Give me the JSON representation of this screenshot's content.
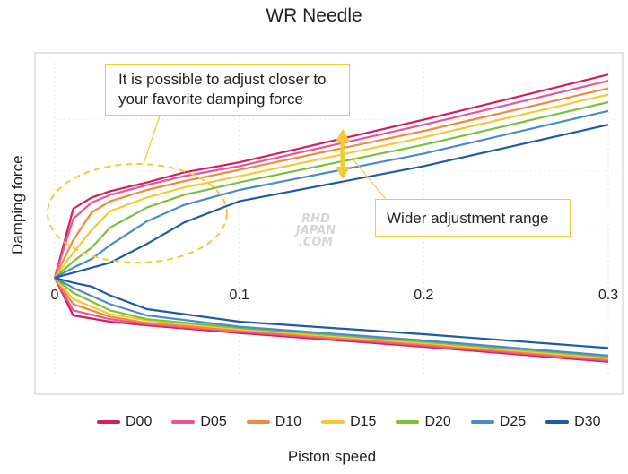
{
  "chart_data": {
    "type": "line",
    "title": "WR Needle",
    "xlabel": "Piston speed",
    "ylabel": "Damping force",
    "x_ticks": [
      "0",
      "0.1",
      "0.2",
      "0.3"
    ],
    "xlim": [
      0,
      0.3
    ],
    "y_ticks_labeled": false,
    "grid": true,
    "legend_position": "bottom",
    "annotations": [
      "It is possible to adjust closer to your favorite damping force",
      "Wider adjustment range"
    ],
    "watermark": [
      "RHD",
      "JAPAN",
      ".COM"
    ],
    "series": [
      {
        "name": "D00",
        "color": "#d81b60",
        "compression": [
          [
            0,
            0
          ],
          [
            0.01,
            0.55
          ],
          [
            0.02,
            0.64
          ],
          [
            0.03,
            0.69
          ],
          [
            0.05,
            0.76
          ],
          [
            0.07,
            0.84
          ],
          [
            0.1,
            0.92
          ],
          [
            0.2,
            1.26
          ],
          [
            0.3,
            1.62
          ]
        ],
        "rebound": [
          [
            0,
            0
          ],
          [
            0.01,
            -0.3
          ],
          [
            0.03,
            -0.35
          ],
          [
            0.05,
            -0.38
          ],
          [
            0.1,
            -0.44
          ],
          [
            0.2,
            -0.55
          ],
          [
            0.3,
            -0.67
          ]
        ]
      },
      {
        "name": "D05",
        "color": "#e8559b",
        "compression": [
          [
            0,
            0
          ],
          [
            0.01,
            0.47
          ],
          [
            0.02,
            0.6
          ],
          [
            0.03,
            0.66
          ],
          [
            0.05,
            0.74
          ],
          [
            0.07,
            0.81
          ],
          [
            0.1,
            0.89
          ],
          [
            0.2,
            1.22
          ],
          [
            0.3,
            1.57
          ]
        ],
        "rebound": [
          [
            0,
            0
          ],
          [
            0.01,
            -0.26
          ],
          [
            0.03,
            -0.33
          ],
          [
            0.05,
            -0.37
          ],
          [
            0.1,
            -0.43
          ],
          [
            0.2,
            -0.54
          ],
          [
            0.3,
            -0.66
          ]
        ]
      },
      {
        "name": "D10",
        "color": "#ed8b3a",
        "compression": [
          [
            0,
            0
          ],
          [
            0.01,
            0.3
          ],
          [
            0.02,
            0.52
          ],
          [
            0.03,
            0.61
          ],
          [
            0.05,
            0.7
          ],
          [
            0.07,
            0.77
          ],
          [
            0.1,
            0.86
          ],
          [
            0.2,
            1.17
          ],
          [
            0.3,
            1.51
          ]
        ],
        "rebound": [
          [
            0,
            0
          ],
          [
            0.01,
            -0.21
          ],
          [
            0.03,
            -0.31
          ],
          [
            0.05,
            -0.36
          ],
          [
            0.1,
            -0.42
          ],
          [
            0.2,
            -0.53
          ],
          [
            0.3,
            -0.65
          ]
        ]
      },
      {
        "name": "D15",
        "color": "#f5c934",
        "compression": [
          [
            0,
            0
          ],
          [
            0.01,
            0.2
          ],
          [
            0.02,
            0.38
          ],
          [
            0.03,
            0.53
          ],
          [
            0.05,
            0.64
          ],
          [
            0.07,
            0.72
          ],
          [
            0.1,
            0.81
          ],
          [
            0.2,
            1.12
          ],
          [
            0.3,
            1.46
          ]
        ],
        "rebound": [
          [
            0,
            0
          ],
          [
            0.01,
            -0.17
          ],
          [
            0.03,
            -0.29
          ],
          [
            0.05,
            -0.34
          ],
          [
            0.1,
            -0.41
          ],
          [
            0.2,
            -0.52
          ],
          [
            0.3,
            -0.64
          ]
        ]
      },
      {
        "name": "D20",
        "color": "#7cbf3a",
        "compression": [
          [
            0,
            0
          ],
          [
            0.01,
            0.13
          ],
          [
            0.02,
            0.24
          ],
          [
            0.03,
            0.4
          ],
          [
            0.05,
            0.56
          ],
          [
            0.07,
            0.66
          ],
          [
            0.1,
            0.76
          ],
          [
            0.2,
            1.06
          ],
          [
            0.3,
            1.4
          ]
        ],
        "rebound": [
          [
            0,
            0
          ],
          [
            0.01,
            -0.12
          ],
          [
            0.03,
            -0.26
          ],
          [
            0.05,
            -0.33
          ],
          [
            0.1,
            -0.4
          ],
          [
            0.2,
            -0.51
          ],
          [
            0.3,
            -0.63
          ]
        ]
      },
      {
        "name": "D25",
        "color": "#4a8ccb",
        "compression": [
          [
            0,
            0
          ],
          [
            0.01,
            0.08
          ],
          [
            0.02,
            0.15
          ],
          [
            0.03,
            0.26
          ],
          [
            0.05,
            0.45
          ],
          [
            0.07,
            0.58
          ],
          [
            0.1,
            0.7
          ],
          [
            0.2,
            0.99
          ],
          [
            0.3,
            1.33
          ]
        ],
        "rebound": [
          [
            0,
            0
          ],
          [
            0.01,
            -0.08
          ],
          [
            0.03,
            -0.21
          ],
          [
            0.05,
            -0.3
          ],
          [
            0.1,
            -0.39
          ],
          [
            0.2,
            -0.5
          ],
          [
            0.3,
            -0.62
          ]
        ]
      },
      {
        "name": "D30",
        "color": "#1f5aa6",
        "compression": [
          [
            0,
            0
          ],
          [
            0.01,
            0.04
          ],
          [
            0.02,
            0.08
          ],
          [
            0.03,
            0.12
          ],
          [
            0.05,
            0.27
          ],
          [
            0.07,
            0.44
          ],
          [
            0.1,
            0.61
          ],
          [
            0.2,
            0.89
          ],
          [
            0.3,
            1.22
          ]
        ],
        "rebound": [
          [
            0,
            0
          ],
          [
            0.01,
            -0.04
          ],
          [
            0.02,
            -0.07
          ],
          [
            0.03,
            -0.14
          ],
          [
            0.05,
            -0.25
          ],
          [
            0.1,
            -0.35
          ],
          [
            0.2,
            -0.45
          ],
          [
            0.3,
            -0.56
          ]
        ]
      }
    ]
  }
}
